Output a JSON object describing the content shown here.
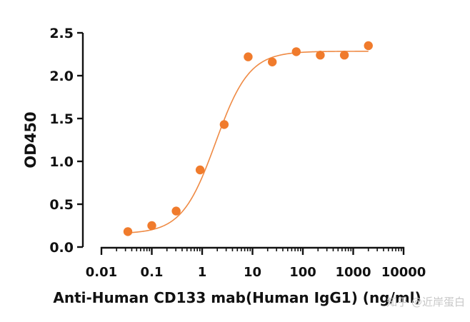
{
  "chart_data": {
    "type": "scatter",
    "title": "",
    "xlabel": "Anti-Human CD133 mab(Human IgG1)  (ng/ml)",
    "ylabel": "OD450",
    "x_scale": "log",
    "xlim": [
      0.01,
      10000
    ],
    "ylim": [
      0,
      2.5
    ],
    "x_ticks": [
      0.01,
      0.1,
      1,
      10,
      100,
      1000,
      10000
    ],
    "x_tick_labels": [
      "0.01",
      "0.1",
      "1",
      "10",
      "100",
      "1000",
      "10000"
    ],
    "y_ticks": [
      0,
      0.5,
      1,
      1.5,
      2,
      2.5
    ],
    "y_tick_labels": [
      "0.0",
      "0.5",
      "1.0",
      "1.5",
      "2.0",
      "2.5"
    ],
    "grid": false,
    "series": [
      {
        "x": [
          0.0335,
          0.1,
          0.305,
          0.91,
          2.74,
          8.2,
          24.7,
          74,
          222,
          667,
          2000
        ],
        "y": [
          0.18,
          0.25,
          0.42,
          0.9,
          1.43,
          2.22,
          2.16,
          2.28,
          2.24,
          2.24,
          2.35
        ],
        "color": "#f07b2c",
        "fit": {
          "model": "4PL",
          "bottom": 0.155,
          "top": 2.285,
          "ec50": 1.85,
          "hill": 1.3,
          "x_range": [
            0.0335,
            2000
          ],
          "color": "#ef8a44"
        }
      }
    ]
  },
  "watermark": "知乎 @近岸蛋白"
}
